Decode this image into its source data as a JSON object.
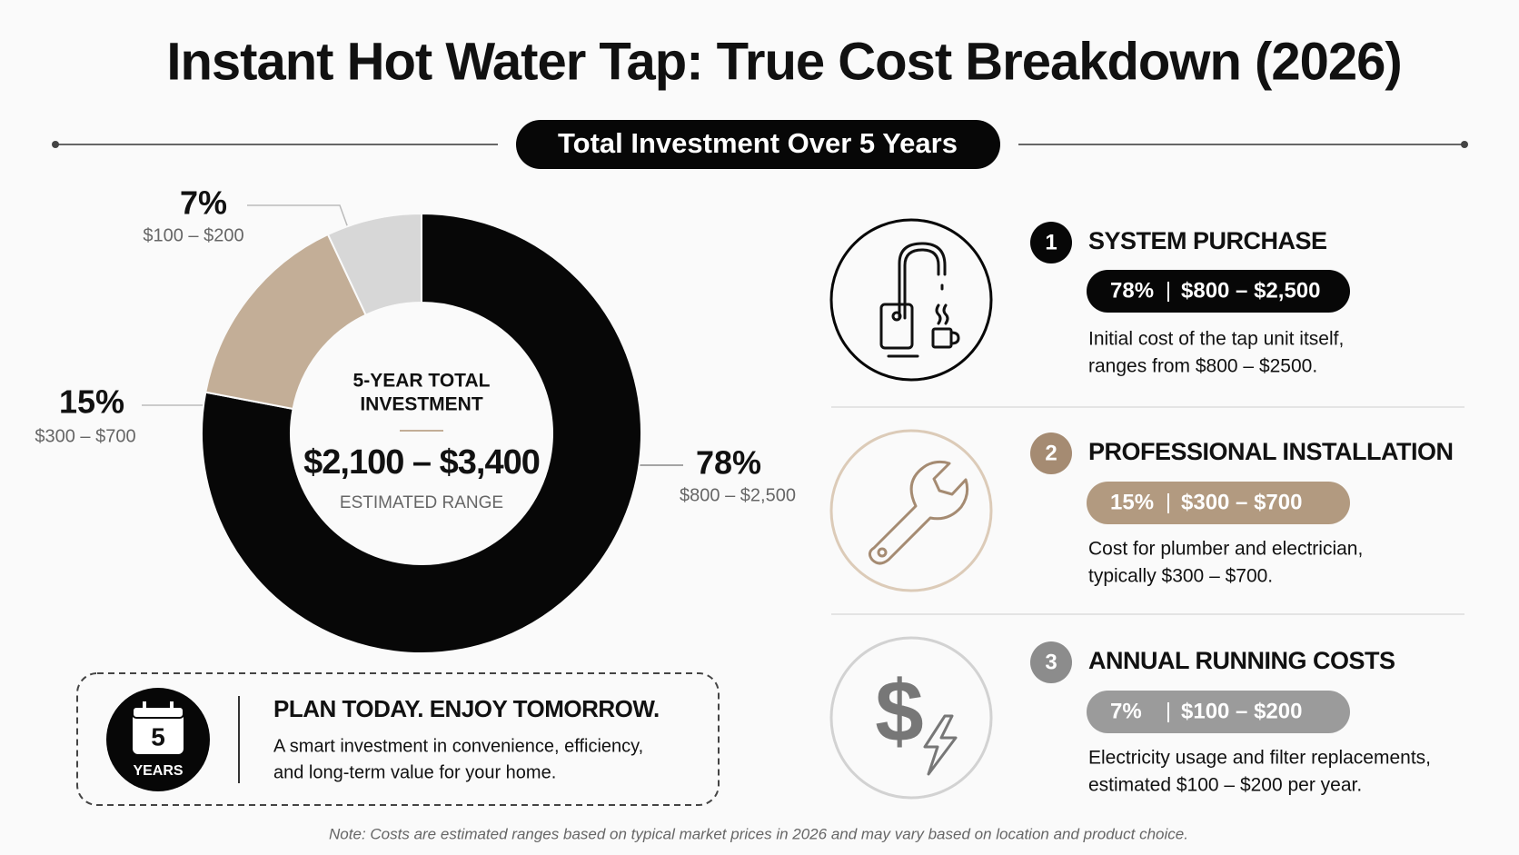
{
  "chart_data": {
    "type": "donut",
    "title": "Instant Hot Water Tap: True Cost Breakdown (2026)",
    "subtitle": "Total Investment Over 5 Years",
    "categories": [
      "SYSTEM PURCHASE",
      "PROFESSIONAL INSTALLATION",
      "ANNUAL RUNNING COSTS"
    ],
    "values": [
      78,
      15,
      7
    ],
    "value_labels": [
      "78%",
      "15%",
      "7%"
    ],
    "ranges": [
      "$800 – $2,500",
      "$300 – $700",
      "$100 – $200"
    ],
    "colors": [
      "#070707",
      "#c3ae97",
      "#d7d7d7"
    ],
    "center": {
      "heading": [
        "5-YEAR TOTAL",
        "INVESTMENT"
      ],
      "value": "$2,100 – $3,400",
      "caption": "ESTIMATED RANGE"
    }
  },
  "breakdown": [
    {
      "number": "1",
      "color": "#070707",
      "badge_color": "#070707",
      "description": [
        "Initial cost of the tap unit itself,",
        "ranges from $800 – $2500."
      ]
    },
    {
      "number": "2",
      "color": "#a58b72",
      "badge_color": "#b29a80",
      "description": [
        "Cost for plumber and electrician,",
        "typically $300 – $700."
      ]
    },
    {
      "number": "3",
      "color": "#8c8c8c",
      "badge_color": "#9b9b9b",
      "description": [
        "Electricity usage and filter replacements,",
        "estimated $100 – $200 per year."
      ]
    }
  ],
  "plan": {
    "badge_number": "5",
    "badge_label": "YEARS",
    "title": "PLAN TODAY. ENJOY TOMORROW.",
    "lines": [
      "A smart investment in convenience, efficiency,",
      "and long-term value for your home."
    ]
  },
  "note": "Note: Costs are estimated ranges based on typical market prices in 2026 and may vary based on location and product choice."
}
